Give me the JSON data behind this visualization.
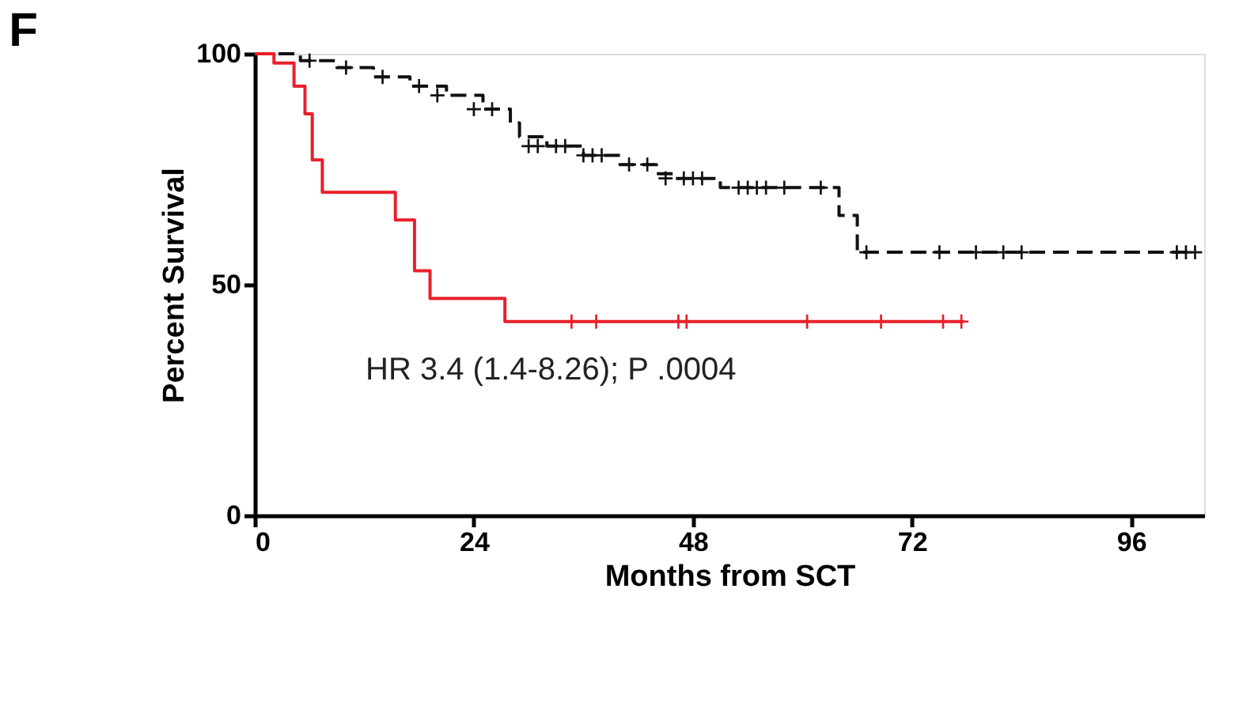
{
  "chart_data": {
    "type": "step",
    "title": "F",
    "xlabel": "Months from SCT",
    "ylabel": "Percent Survival",
    "xlim": [
      0,
      104
    ],
    "xticks": [
      0,
      24,
      48,
      72,
      96
    ],
    "ylim": [
      0,
      100
    ],
    "yticks": [
      0,
      50,
      100
    ],
    "grid": false,
    "annotations": [
      "HR 3.4 (1.4-8.26); P .0004"
    ],
    "series": [
      {
        "color": "#111111",
        "line_style": "dashed",
        "x": [
          0,
          5,
          9,
          13,
          17,
          21,
          25,
          28,
          29,
          32,
          36,
          40,
          44,
          46,
          51,
          64,
          66,
          103
        ],
        "values": [
          100,
          98.5,
          97,
          95,
          93,
          91,
          88,
          85,
          82,
          80,
          78,
          76,
          74,
          73,
          71,
          65,
          57,
          57
        ]
      },
      {
        "color": "#e8202a",
        "line_style": "solid",
        "x": [
          0,
          2.1,
          4.3,
          5.5,
          6.3,
          7.4,
          15.4,
          17.5,
          19.2,
          27.4,
          77.7
        ],
        "values": [
          100,
          98,
          93,
          87,
          77,
          70,
          64,
          53,
          47,
          42,
          42
        ]
      },
      {
        "type": "scatter",
        "marker": "cross",
        "color": "#111111",
        "x": [
          6,
          10,
          14,
          18,
          20,
          24,
          26,
          30,
          31,
          33,
          34,
          36,
          37,
          38,
          41,
          43,
          45,
          47,
          48,
          49,
          53,
          54,
          55,
          56,
          58,
          62,
          67,
          75,
          79,
          82,
          84,
          101,
          102,
          103
        ],
        "values": [
          98.5,
          97,
          95,
          93,
          91,
          88,
          88,
          80,
          80,
          80,
          80,
          78,
          78,
          78,
          76,
          76,
          73,
          73,
          73,
          73,
          71,
          71,
          71,
          71,
          71,
          71,
          57,
          57,
          57,
          57,
          57,
          57,
          57,
          57
        ]
      },
      {
        "type": "scatter",
        "marker": "cross",
        "color": "#e8202a",
        "x": [
          34.7,
          37.4,
          46.4,
          47.3,
          60.5,
          68.6,
          75.4,
          77.4
        ],
        "values": [
          42,
          42,
          42,
          42,
          42,
          42,
          42,
          42
        ]
      }
    ]
  }
}
